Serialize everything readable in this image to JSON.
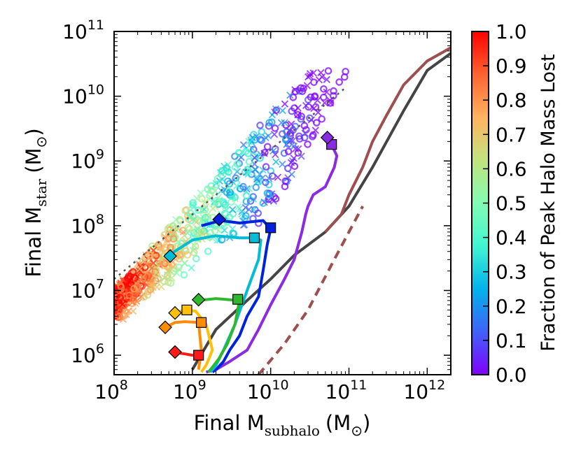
{
  "chart_data": {
    "type": "scatter",
    "xlabel": {
      "main": "Final M",
      "sub": "subhalo",
      "unit": "(M",
      "unit_end": ")"
    },
    "ylabel": {
      "main": "Final M",
      "sub": "star",
      "unit": "(M",
      "unit_end": ")"
    },
    "x_scale": "log",
    "y_scale": "log",
    "xlim": [
      100000000.0,
      2000000000000.0
    ],
    "ylim": [
      500000.0,
      100000000000.0
    ],
    "x_ticks": [
      {
        "base": "10",
        "exp": "8",
        "value": 100000000.0
      },
      {
        "base": "10",
        "exp": "9",
        "value": 1000000000.0
      },
      {
        "base": "10",
        "exp": "10",
        "value": 10000000000.0
      },
      {
        "base": "10",
        "exp": "11",
        "value": 100000000000.0
      },
      {
        "base": "10",
        "exp": "12",
        "value": 1000000000000.0
      }
    ],
    "y_ticks": [
      {
        "base": "10",
        "exp": "6",
        "value": 1000000.0
      },
      {
        "base": "10",
        "exp": "7",
        "value": 10000000.0
      },
      {
        "base": "10",
        "exp": "8",
        "value": 100000000.0
      },
      {
        "base": "10",
        "exp": "9",
        "value": 1000000000.0
      },
      {
        "base": "10",
        "exp": "10",
        "value": 10000000000.0
      },
      {
        "base": "10",
        "exp": "11",
        "value": 100000000000.0
      }
    ],
    "grid": false,
    "colorbar": {
      "label": "Fraction of Peak Halo Mass Lost",
      "range": [
        0.0,
        1.0
      ],
      "ticks": [
        "0.0",
        "0.1",
        "0.2",
        "0.3",
        "0.4",
        "0.5",
        "0.6",
        "0.7",
        "0.8",
        "0.9",
        "1.0"
      ],
      "colors": [
        "#8000ff",
        "#4062fa",
        "#01b3eb",
        "#41f5d2",
        "#81fcb3",
        "#c1e37e",
        "#ffb360",
        "#ff6330",
        "#ff0000"
      ]
    },
    "reference_lines": [
      {
        "name": "one-to-one",
        "style": "dotted",
        "color": "#555555",
        "x": [
          100000000.0,
          90000000000.0
        ],
        "y": [
          15000000.0,
          13500000000.0
        ]
      },
      {
        "name": "relation-dark",
        "style": "solid",
        "color": "#444444",
        "x": [
          1000000000.0,
          2000000000.0,
          5000000000.0,
          10000000000.0,
          20000000000.0,
          50000000000.0,
          100000000000.0,
          200000000000.0,
          500000000000.0,
          1000000000000.0,
          2000000000000.0
        ],
        "y": [
          600000.0,
          2500000.0,
          7000000.0,
          15000000.0,
          35000000.0,
          80000000.0,
          200000000.0,
          800000000.0,
          6000000000.0,
          25000000000.0,
          46000000000.0
        ]
      },
      {
        "name": "relation-brown",
        "style": "solid",
        "color": "#9e4e4e",
        "x": [
          50000000000.0,
          80000000000.0,
          100000000000.0,
          150000000000.0,
          200000000000.0,
          300000000000.0,
          500000000000.0,
          1000000000000.0,
          2000000000000.0
        ],
        "y": [
          80000000.0,
          150000000.0,
          300000000.0,
          800000000.0,
          2000000000.0,
          5000000000.0,
          15000000000.0,
          35000000000.0,
          56000000000.0
        ]
      },
      {
        "name": "relation-brown-dashed",
        "style": "dashed",
        "color": "#9e4e4e",
        "x": [
          7000000000.0,
          15000000000.0,
          30000000000.0,
          60000000000.0,
          100000000000.0,
          150000000000.0
        ],
        "y": [
          500000.0,
          1500000.0,
          5000000.0,
          25000000.0,
          80000000.0,
          200000000.0
        ]
      }
    ],
    "tracks": [
      {
        "color": "#8a2be2",
        "x": [
          53000000000.0,
          60000000000.0,
          70000000000.0,
          65000000000.0,
          50000000000.0,
          35000000000.0,
          30000000000.0,
          28000000000.0,
          25000000000.0,
          20000000000.0,
          15000000000.0,
          10000000000.0,
          7000000000.0,
          5000000000.0,
          3000000000.0,
          2000000000.0,
          1500000000.0
        ],
        "y": [
          2300000000.0,
          1800000000.0,
          1200000000.0,
          800000000.0,
          400000000.0,
          300000000.0,
          200000000.0,
          150000000.0,
          80000000.0,
          30000000.0,
          15000000.0,
          6000000.0,
          2500000.0,
          1200000.0,
          800000.0,
          600000.0,
          550000.0
        ],
        "diamond": [
          53000000000.0,
          2300000000.0
        ],
        "square": [
          60000000000.0,
          1800000000.0
        ]
      },
      {
        "color": "#0022dd",
        "x": [
          1300000000.0,
          2300000000.0,
          4000000000.0,
          8000000000.0,
          10000000000.0,
          9000000000.0,
          8000000000.0,
          7000000000.0,
          5000000000.0,
          4000000000.0,
          3000000000.0,
          2500000000.0,
          2000000000.0,
          1800000000.0
        ],
        "y": [
          100000000.0,
          120000000.0,
          110000000.0,
          120000000.0,
          90000000.0,
          50000000.0,
          20000000.0,
          8000000.0,
          4000000.0,
          2000000.0,
          1200000.0,
          800000.0,
          600000.0,
          550000.0
        ],
        "diamond": [
          2200000000.0,
          125000000.0
        ],
        "square": [
          10000000000.0,
          93000000.0
        ]
      },
      {
        "color": "#00bcd4",
        "x": [
          500000000.0,
          1000000000.0,
          2000000000.0,
          4000000000.0,
          6000000000.0,
          7500000000.0,
          7000000000.0,
          5000000000.0,
          3500000000.0,
          2500000000.0,
          2000000000.0,
          1700000000.0
        ],
        "y": [
          35000000.0,
          60000000.0,
          70000000.0,
          65000000.0,
          65000000.0,
          60000000.0,
          30000000.0,
          10000000.0,
          3000000.0,
          1200000.0,
          700000.0,
          550000.0
        ],
        "diamond": [
          520000000.0,
          34000000.0
        ],
        "square": [
          6200000000.0,
          65000000.0
        ]
      },
      {
        "color": "#2eb82e",
        "x": [
          1200000000.0,
          2000000000.0,
          3000000000.0,
          4000000000.0,
          3500000000.0,
          2800000000.0,
          2200000000.0,
          1800000000.0,
          1600000000.0
        ],
        "y": [
          7000000.0,
          7500000.0,
          7200000.0,
          7000000.0,
          3000000.0,
          1500000.0,
          900000.0,
          650000.0,
          550000.0
        ],
        "diamond": [
          1200000000.0,
          7200000.0
        ],
        "square": [
          3800000000.0,
          7300000.0
        ]
      },
      {
        "color": "#ffc107",
        "x": [
          600000000.0,
          800000000.0,
          1100000000.0,
          1500000000.0,
          1800000000.0,
          1500000000.0,
          1300000000.0
        ],
        "y": [
          4500000.0,
          5000000.0,
          4800000.0,
          3000000.0,
          1200000.0,
          700000.0,
          550000.0
        ],
        "diamond": [
          600000000.0,
          4500000.0
        ],
        "square": [
          850000000.0,
          5000000.0
        ]
      },
      {
        "color": "#ff8c00",
        "x": [
          450000000.0,
          600000000.0,
          800000000.0,
          1200000000.0,
          1300000000.0,
          1200000000.0
        ],
        "y": [
          2700000.0,
          3200000.0,
          3300000.0,
          3200000.0,
          1200000.0,
          600000.0
        ],
        "diamond": [
          450000000.0,
          2700000.0
        ],
        "square": [
          1300000000.0,
          3200000.0
        ]
      },
      {
        "color": "#ff1a1a",
        "x": [
          600000000.0,
          800000000.0,
          1000000000.0,
          1200000000.0
        ],
        "y": [
          1100000.0,
          1050000.0,
          1000000.0,
          1000000.0
        ],
        "diamond": [
          600000000.0,
          1120000.0
        ],
        "square": [
          1200000000.0,
          1000000.0
        ]
      }
    ]
  }
}
